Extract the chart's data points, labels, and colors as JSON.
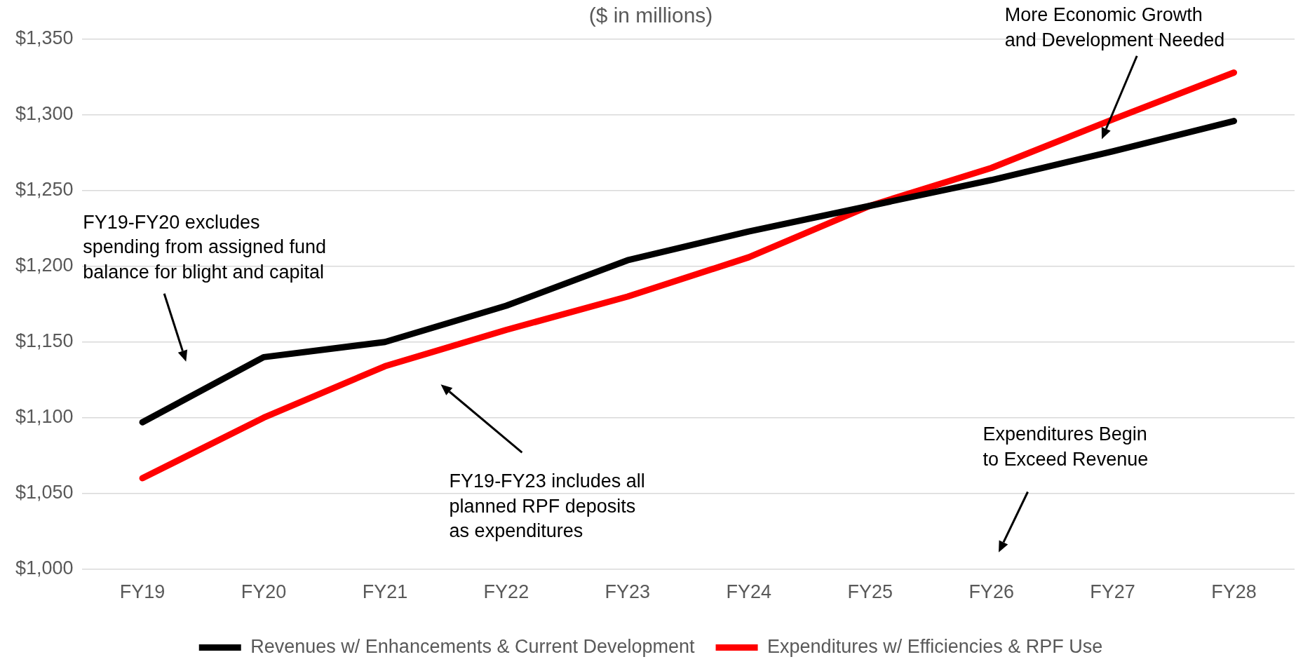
{
  "chart_data": {
    "type": "line",
    "title": "($ in millions)",
    "categories": [
      "FY19",
      "FY20",
      "FY21",
      "FY22",
      "FY23",
      "FY24",
      "FY25",
      "FY26",
      "FY27",
      "FY28"
    ],
    "series": [
      {
        "name": "Revenues w/ Enhancements & Current Development",
        "color": "#000000",
        "values": [
          1097,
          1140,
          1150,
          1174,
          1204,
          1223,
          1240,
          1257,
          1276,
          1296
        ]
      },
      {
        "name": "Expenditures w/ Efficiencies & RPF Use",
        "color": "#ff0000",
        "values": [
          1060,
          1100,
          1134,
          1158,
          1180,
          1206,
          1240,
          1265,
          1297,
          1328
        ]
      }
    ],
    "ylim": [
      1000,
      1350
    ],
    "yticks": [
      {
        "value": 1000,
        "label": "$1,000"
      },
      {
        "value": 1050,
        "label": "$1,050"
      },
      {
        "value": 1100,
        "label": "$1,100"
      },
      {
        "value": 1150,
        "label": "$1,150"
      },
      {
        "value": 1200,
        "label": "$1,200"
      },
      {
        "value": 1250,
        "label": "$1,250"
      },
      {
        "value": 1300,
        "label": "$1,300"
      },
      {
        "value": 1350,
        "label": "$1,350"
      }
    ],
    "grid": "y",
    "legend": "bottom",
    "marker": "none",
    "line_style": "solid",
    "annotations": [
      "FY19-FY20 excludes\nspending from assigned fund\nbalance for blight and capital",
      "FY19-FY23 includes all\nplanned RPF deposits\nas expenditures",
      "Expenditures Begin\nto Exceed Revenue",
      "More Economic Growth\nand Development Needed"
    ]
  }
}
